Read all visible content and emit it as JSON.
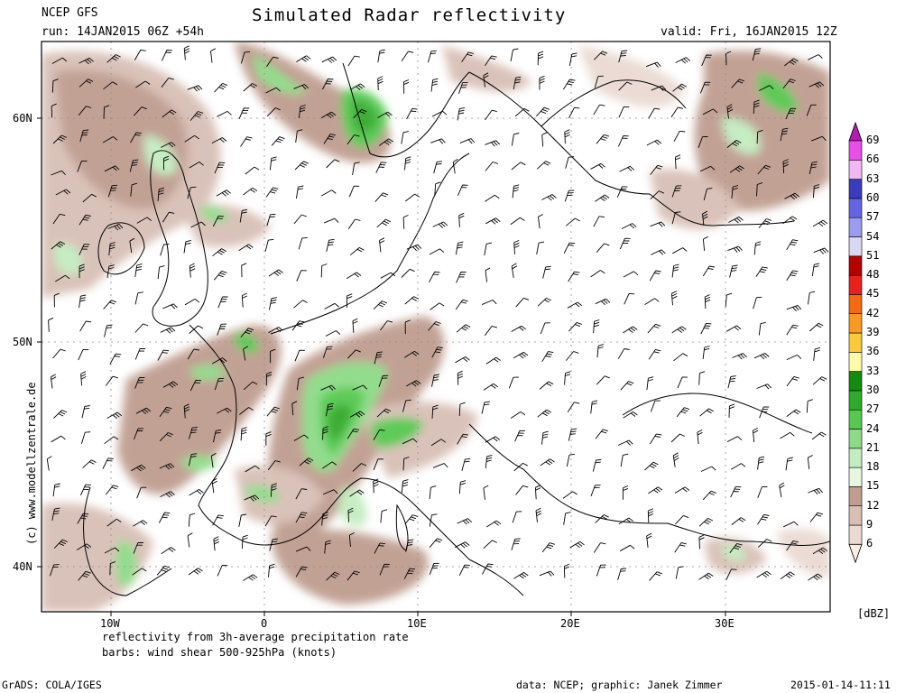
{
  "header": {
    "model": "NCEP GFS",
    "run": "run: 14JAN2015 06Z +54h",
    "title": "Simulated Radar reflectivity",
    "valid": "valid: Fri, 16JAN2015 12Z"
  },
  "map": {
    "lat_labels": [
      "60N",
      "50N",
      "40N"
    ],
    "lon_labels": [
      "10W",
      "0",
      "10E",
      "20E",
      "30E"
    ],
    "watermark": "(c) www.modellzentrale.de"
  },
  "colorbar": {
    "unit": "[dBZ]",
    "levels": [
      "6",
      "9",
      "12",
      "15",
      "18",
      "21",
      "24",
      "27",
      "30",
      "33",
      "36",
      "39",
      "42",
      "45",
      "48",
      "51",
      "54",
      "57",
      "60",
      "63",
      "66",
      "69"
    ],
    "colors": [
      "#fbeee5",
      "#eadad2",
      "#d8bfb6",
      "#bf9d90",
      "#e6f6e0",
      "#c3ecc0",
      "#8ddb88",
      "#55c950",
      "#31a92a",
      "#138b0d",
      "#fefba8",
      "#fbc93c",
      "#f79a21",
      "#f46a13",
      "#e8211c",
      "#b70000",
      "#d8d8f4",
      "#9b9bef",
      "#6565e4",
      "#3b3bbd",
      "#f1b8f1",
      "#e74fe7",
      "#b31bb3"
    ]
  },
  "captions": {
    "line1": "reflectivity from 3h-average precipitation rate",
    "line2": "barbs: wind shear 500-925hPa (knots)"
  },
  "footer": {
    "left": "GrADS: COLA/IGES",
    "credit": "data: NCEP; graphic: Janek Zimmer",
    "timestamp": "2015-01-14-11:11"
  }
}
